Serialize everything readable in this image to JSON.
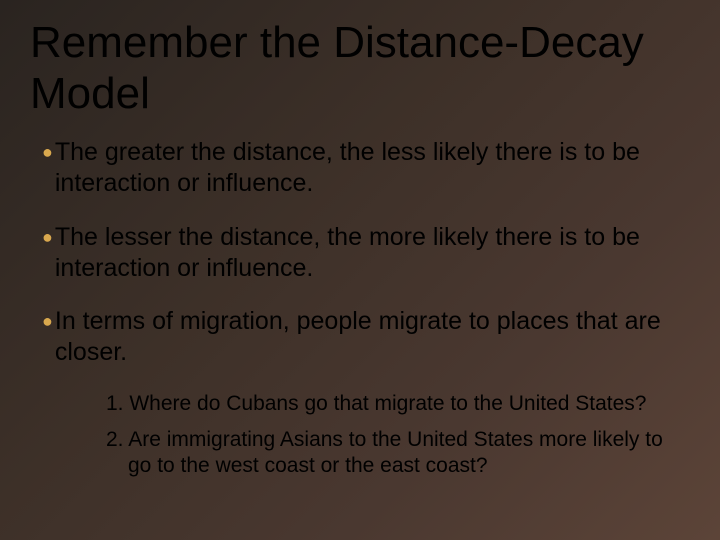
{
  "slide": {
    "title": "Remember the Distance-Decay Model",
    "title_fontsize": 44,
    "title_color": "#000000",
    "background_gradient": [
      "#2a2420",
      "#3d3028",
      "#4a3830",
      "#5c4438"
    ],
    "bullet_marker_color": "#d9a84e",
    "body_fontsize": 25,
    "body_color": "#000000",
    "sub_fontsize": 21,
    "bullets": [
      {
        "text": "The greater the distance, the less likely there is to be interaction or influence."
      },
      {
        "text": "The lesser the distance, the more likely there is to be interaction or influence."
      },
      {
        "text": "In terms of migration, people migrate to places that are closer."
      }
    ],
    "subitems": [
      "1. Where do Cubans go that migrate to the United States?",
      "2. Are immigrating Asians to the United States more likely to go to the west coast or the east coast?"
    ]
  }
}
